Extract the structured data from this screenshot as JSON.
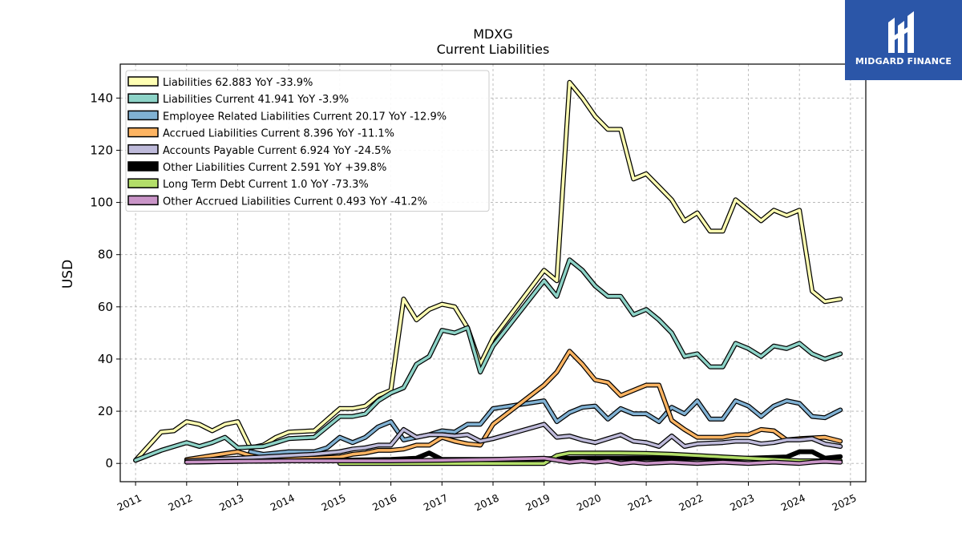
{
  "logo": {
    "text": "MIDGARD FINANCE",
    "bg": "#2b56a8"
  },
  "chart_data": {
    "type": "line",
    "title": "MDXG",
    "subtitle": "Current  Liabilities",
    "ylabel": "USD",
    "xlabel": "",
    "xlim": [
      2010.7,
      2025.3
    ],
    "ylim": [
      -7,
      153
    ],
    "yticks": [
      0,
      20,
      40,
      60,
      80,
      100,
      120,
      140
    ],
    "xticks": [
      "2011",
      "2012",
      "2013",
      "2014",
      "2015",
      "2016",
      "2017",
      "2018",
      "2019",
      "2020",
      "2021",
      "2022",
      "2023",
      "2024",
      "2025"
    ],
    "grid": true,
    "legend_position": "top-left",
    "series": [
      {
        "name": "Liabilities",
        "legend": "Liabilities  62.883 YoY -33.9%",
        "color": "#ffffb3",
        "points": [
          [
            2011.0,
            1.2
          ],
          [
            2011.5,
            12
          ],
          [
            2011.75,
            12.5
          ],
          [
            2012.0,
            16
          ],
          [
            2012.25,
            15
          ],
          [
            2012.5,
            12.5
          ],
          [
            2012.75,
            15
          ],
          [
            2013.0,
            16
          ],
          [
            2013.25,
            6
          ],
          [
            2013.5,
            7
          ],
          [
            2013.75,
            10
          ],
          [
            2014.0,
            12
          ],
          [
            2014.5,
            12.5
          ],
          [
            2015.0,
            21
          ],
          [
            2015.25,
            21
          ],
          [
            2015.5,
            22
          ],
          [
            2015.75,
            26
          ],
          [
            2016.0,
            28
          ],
          [
            2016.25,
            63
          ],
          [
            2016.5,
            55
          ],
          [
            2016.75,
            59
          ],
          [
            2017.0,
            61
          ],
          [
            2017.25,
            60
          ],
          [
            2017.5,
            52
          ],
          [
            2017.75,
            38
          ],
          [
            2018.0,
            48
          ],
          [
            2019.0,
            74
          ],
          [
            2019.25,
            70
          ],
          [
            2019.5,
            146
          ],
          [
            2019.75,
            140
          ],
          [
            2020.0,
            133
          ],
          [
            2020.25,
            128
          ],
          [
            2020.5,
            128
          ],
          [
            2020.75,
            109
          ],
          [
            2021.0,
            111
          ],
          [
            2021.25,
            106
          ],
          [
            2021.5,
            101
          ],
          [
            2021.75,
            93
          ],
          [
            2022.0,
            96
          ],
          [
            2022.25,
            89
          ],
          [
            2022.5,
            89
          ],
          [
            2022.75,
            101
          ],
          [
            2023.0,
            97
          ],
          [
            2023.25,
            93
          ],
          [
            2023.5,
            97
          ],
          [
            2023.75,
            95
          ],
          [
            2024.0,
            97
          ],
          [
            2024.25,
            66
          ],
          [
            2024.5,
            62
          ],
          [
            2024.8,
            63
          ]
        ]
      },
      {
        "name": "Liabilities Current",
        "legend": "Liabilities Current  41.941 YoY -3.9%",
        "color": "#8dd3c7",
        "points": [
          [
            2011.0,
            1.2
          ],
          [
            2011.5,
            5
          ],
          [
            2012.0,
            8
          ],
          [
            2012.25,
            6.5
          ],
          [
            2012.5,
            8
          ],
          [
            2012.75,
            10
          ],
          [
            2013.0,
            6
          ],
          [
            2013.5,
            6.5
          ],
          [
            2013.75,
            8
          ],
          [
            2014.0,
            9.5
          ],
          [
            2014.5,
            10
          ],
          [
            2015.0,
            18
          ],
          [
            2015.25,
            18
          ],
          [
            2015.5,
            19
          ],
          [
            2015.75,
            24
          ],
          [
            2016.0,
            27
          ],
          [
            2016.25,
            29
          ],
          [
            2016.5,
            38
          ],
          [
            2016.75,
            41
          ],
          [
            2017.0,
            51
          ],
          [
            2017.25,
            50
          ],
          [
            2017.5,
            52
          ],
          [
            2017.75,
            35
          ],
          [
            2018.0,
            45
          ],
          [
            2019.0,
            70
          ],
          [
            2019.25,
            64
          ],
          [
            2019.5,
            78
          ],
          [
            2019.75,
            74
          ],
          [
            2020.0,
            68
          ],
          [
            2020.25,
            64
          ],
          [
            2020.5,
            64
          ],
          [
            2020.75,
            57
          ],
          [
            2021.0,
            59
          ],
          [
            2021.25,
            55
          ],
          [
            2021.5,
            50
          ],
          [
            2021.75,
            41
          ],
          [
            2022.0,
            42
          ],
          [
            2022.25,
            37
          ],
          [
            2022.5,
            37
          ],
          [
            2022.75,
            46
          ],
          [
            2023.0,
            44
          ],
          [
            2023.25,
            41
          ],
          [
            2023.5,
            45
          ],
          [
            2023.75,
            44
          ],
          [
            2024.0,
            46
          ],
          [
            2024.25,
            42
          ],
          [
            2024.5,
            40
          ],
          [
            2024.8,
            42
          ]
        ]
      },
      {
        "name": "Employee Related Liabilities Current",
        "legend": "Employee Related Liabilities Current  20.17 YoY -12.9%",
        "color": "#80b1d3",
        "points": [
          [
            2013.25,
            4.5
          ],
          [
            2013.5,
            3.5
          ],
          [
            2013.75,
            4
          ],
          [
            2014.0,
            4.5
          ],
          [
            2014.5,
            4.5
          ],
          [
            2014.75,
            6
          ],
          [
            2015.0,
            10
          ],
          [
            2015.25,
            8
          ],
          [
            2015.5,
            10
          ],
          [
            2015.75,
            14
          ],
          [
            2016.0,
            16
          ],
          [
            2016.25,
            9
          ],
          [
            2016.5,
            10
          ],
          [
            2016.75,
            11
          ],
          [
            2017.0,
            12.5
          ],
          [
            2017.25,
            12
          ],
          [
            2017.5,
            15
          ],
          [
            2017.75,
            15
          ],
          [
            2018.0,
            21
          ],
          [
            2019.0,
            24
          ],
          [
            2019.25,
            16
          ],
          [
            2019.5,
            19.5
          ],
          [
            2019.75,
            21.5
          ],
          [
            2020.0,
            22
          ],
          [
            2020.25,
            17
          ],
          [
            2020.5,
            21
          ],
          [
            2020.75,
            19
          ],
          [
            2021.0,
            19
          ],
          [
            2021.25,
            16
          ],
          [
            2021.5,
            21.5
          ],
          [
            2021.75,
            19
          ],
          [
            2022.0,
            24
          ],
          [
            2022.25,
            17
          ],
          [
            2022.5,
            17
          ],
          [
            2022.75,
            24
          ],
          [
            2023.0,
            22
          ],
          [
            2023.25,
            18
          ],
          [
            2023.5,
            22
          ],
          [
            2023.75,
            24
          ],
          [
            2024.0,
            23
          ],
          [
            2024.25,
            18
          ],
          [
            2024.5,
            17.5
          ],
          [
            2024.8,
            20.5
          ]
        ]
      },
      {
        "name": "Accrued Liabilities Current",
        "legend": "Accrued Liabilities Current  8.396 YoY -11.1%",
        "color": "#fdb462",
        "points": [
          [
            2012.0,
            1.5
          ],
          [
            2012.5,
            3
          ],
          [
            2013.0,
            4.5
          ],
          [
            2013.25,
            3
          ],
          [
            2013.5,
            2
          ],
          [
            2014.0,
            2
          ],
          [
            2014.5,
            2
          ],
          [
            2015.0,
            2.5
          ],
          [
            2015.25,
            3.5
          ],
          [
            2015.5,
            4
          ],
          [
            2015.75,
            5
          ],
          [
            2016.0,
            5
          ],
          [
            2016.25,
            5.5
          ],
          [
            2016.5,
            7
          ],
          [
            2016.75,
            7
          ],
          [
            2017.0,
            10
          ],
          [
            2017.25,
            8.5
          ],
          [
            2017.5,
            7.5
          ],
          [
            2017.75,
            7
          ],
          [
            2018.0,
            15
          ],
          [
            2019.0,
            30
          ],
          [
            2019.25,
            35
          ],
          [
            2019.5,
            43
          ],
          [
            2019.75,
            38
          ],
          [
            2020.0,
            32
          ],
          [
            2020.25,
            31
          ],
          [
            2020.5,
            26
          ],
          [
            2020.75,
            28
          ],
          [
            2021.0,
            30
          ],
          [
            2021.25,
            30
          ],
          [
            2021.5,
            16.5
          ],
          [
            2021.75,
            13
          ],
          [
            2022.0,
            10
          ],
          [
            2022.5,
            10
          ],
          [
            2022.75,
            11
          ],
          [
            2023.0,
            11
          ],
          [
            2023.25,
            13
          ],
          [
            2023.5,
            12.5
          ],
          [
            2023.75,
            9
          ],
          [
            2024.0,
            9.5
          ],
          [
            2024.5,
            10
          ],
          [
            2024.8,
            8.5
          ]
        ]
      },
      {
        "name": "Accounts Payable Current",
        "legend": "Accounts Payable Current  6.924 YoY -24.5%",
        "color": "#bebada",
        "points": [
          [
            2012.0,
            1
          ],
          [
            2012.5,
            1.5
          ],
          [
            2013.0,
            2
          ],
          [
            2013.5,
            2.5
          ],
          [
            2014.0,
            3
          ],
          [
            2014.5,
            3.5
          ],
          [
            2015.0,
            4.5
          ],
          [
            2015.25,
            5.5
          ],
          [
            2015.5,
            6
          ],
          [
            2015.75,
            7
          ],
          [
            2016.0,
            7
          ],
          [
            2016.25,
            13
          ],
          [
            2016.5,
            10
          ],
          [
            2016.75,
            11
          ],
          [
            2017.0,
            11
          ],
          [
            2017.25,
            10.5
          ],
          [
            2017.5,
            11
          ],
          [
            2017.75,
            8.5
          ],
          [
            2018.0,
            9.5
          ],
          [
            2019.0,
            15
          ],
          [
            2019.25,
            10
          ],
          [
            2019.5,
            10.5
          ],
          [
            2019.75,
            9
          ],
          [
            2020.0,
            8
          ],
          [
            2020.25,
            9.5
          ],
          [
            2020.5,
            11
          ],
          [
            2020.75,
            8.5
          ],
          [
            2021.0,
            8
          ],
          [
            2021.25,
            6.5
          ],
          [
            2021.5,
            10.5
          ],
          [
            2021.75,
            6.5
          ],
          [
            2022.0,
            7.5
          ],
          [
            2022.5,
            8
          ],
          [
            2022.75,
            8.5
          ],
          [
            2023.0,
            8.5
          ],
          [
            2023.25,
            7.5
          ],
          [
            2023.5,
            8
          ],
          [
            2023.75,
            9
          ],
          [
            2024.0,
            9
          ],
          [
            2024.25,
            9.5
          ],
          [
            2024.5,
            7.5
          ],
          [
            2024.8,
            6.5
          ]
        ]
      },
      {
        "name": "Other Liabilities Current",
        "legend": "Other Liabilities Current  2.591 YoY +39.8%",
        "color": "#000000",
        "points": [
          [
            2012.0,
            0.5
          ],
          [
            2013.0,
            0.8
          ],
          [
            2014.0,
            1
          ],
          [
            2015.0,
            1.2
          ],
          [
            2016.0,
            1.5
          ],
          [
            2016.5,
            2
          ],
          [
            2016.75,
            4
          ],
          [
            2017.0,
            1.5
          ],
          [
            2018.0,
            1.5
          ],
          [
            2019.0,
            1.8
          ],
          [
            2020.0,
            2
          ],
          [
            2021.0,
            2
          ],
          [
            2022.0,
            2
          ],
          [
            2023.0,
            2
          ],
          [
            2023.75,
            2.5
          ],
          [
            2024.0,
            4.5
          ],
          [
            2024.25,
            4.5
          ],
          [
            2024.5,
            2
          ],
          [
            2024.8,
            2.6
          ]
        ]
      },
      {
        "name": "Long Term Debt Current",
        "legend": "Long Term Debt Current  1.0 YoY -73.3%",
        "color": "#b3de69",
        "points": [
          [
            2015.0,
            0
          ],
          [
            2016.0,
            0
          ],
          [
            2017.0,
            0
          ],
          [
            2018.0,
            0
          ],
          [
            2019.0,
            0
          ],
          [
            2019.25,
            3
          ],
          [
            2019.5,
            4
          ],
          [
            2020.0,
            4
          ],
          [
            2020.5,
            4
          ],
          [
            2021.0,
            3.8
          ],
          [
            2021.5,
            3.5
          ],
          [
            2022.0,
            3
          ],
          [
            2022.5,
            2.5
          ],
          [
            2023.0,
            2
          ],
          [
            2023.5,
            1.5
          ],
          [
            2024.0,
            1
          ],
          [
            2024.8,
            1
          ]
        ]
      },
      {
        "name": "Other Accrued Liabilities Current",
        "legend": "Other Accrued Liabilities Current  0.493 YoY -41.2%",
        "color": "#c994c7",
        "points": [
          [
            2012.0,
            0.5
          ],
          [
            2013.0,
            0.8
          ],
          [
            2014.0,
            1
          ],
          [
            2015.0,
            1
          ],
          [
            2016.0,
            1
          ],
          [
            2017.0,
            1.2
          ],
          [
            2018.0,
            1.5
          ],
          [
            2019.0,
            2
          ],
          [
            2019.5,
            0.5
          ],
          [
            2019.75,
            1
          ],
          [
            2020.0,
            0.5
          ],
          [
            2020.25,
            1
          ],
          [
            2020.5,
            0
          ],
          [
            2020.75,
            0.5
          ],
          [
            2021.0,
            0
          ],
          [
            2021.5,
            0.5
          ],
          [
            2022.0,
            0
          ],
          [
            2022.5,
            0.5
          ],
          [
            2023.0,
            0
          ],
          [
            2023.5,
            0.5
          ],
          [
            2024.0,
            0
          ],
          [
            2024.25,
            0.5
          ],
          [
            2024.5,
            0.8
          ],
          [
            2024.8,
            0.5
          ]
        ]
      }
    ]
  }
}
